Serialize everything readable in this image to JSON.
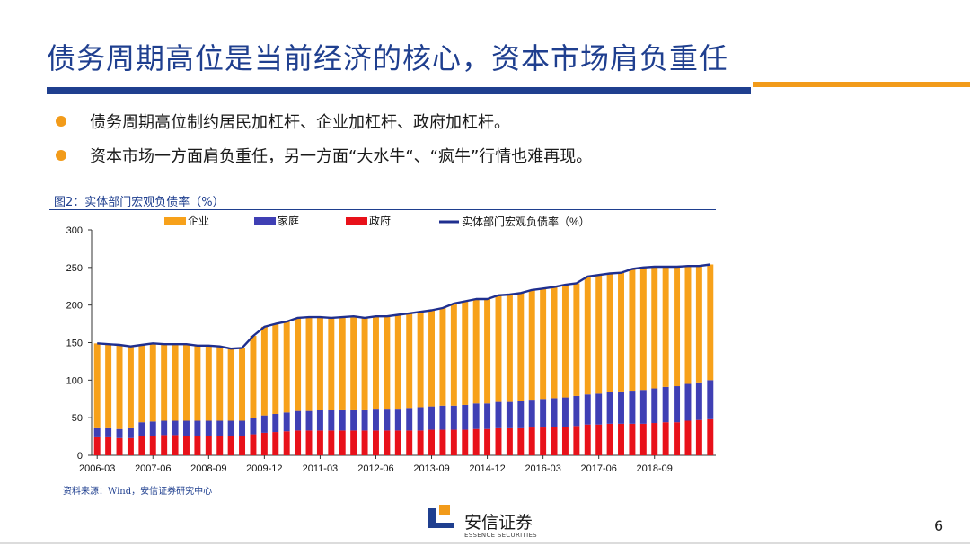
{
  "slide": {
    "title": "债务周期高位是当前经济的核心，资本市场肩负重任",
    "bullets": [
      "债务周期高位制约居民加杠杆、企业加杠杆、政府加杠杆。",
      "资本市场一方面肩负重任，另一方面“大水牛“、“疯牛”行情也难再现。"
    ],
    "page_number": "6"
  },
  "figure": {
    "title": "图2：实体部门宏观负债率（%）",
    "source": "资料来源：Wind，安信证券研究中心"
  },
  "brand": {
    "name_cn": "安信证券",
    "name_en": "ESSENCE SECURITIES",
    "colors": {
      "blue": "#1f3f8f",
      "orange": "#f29b1a"
    }
  },
  "chart_data": {
    "type": "bar",
    "stacked": true,
    "x_ticks": [
      "2006-03",
      "2007-06",
      "2008-09",
      "2009-12",
      "2011-03",
      "2012-06",
      "2013-09",
      "2014-12",
      "2016-03",
      "2017-06",
      "2018-09"
    ],
    "ylim": [
      0,
      300
    ],
    "yticks": [
      0,
      50,
      100,
      150,
      200,
      250,
      300
    ],
    "legend_position": "top",
    "colors": {
      "企业": "#f7a11a",
      "家庭": "#3f3fb4",
      "政府": "#e8111a",
      "实体部门宏观负债率（%）": "#1f2f8f"
    },
    "series": [
      {
        "name": "企业",
        "values": [
          113,
          112,
          112,
          109,
          103,
          104,
          102,
          102,
          102,
          100,
          100,
          99,
          96,
          97,
          109,
          118,
          120,
          121,
          124,
          125,
          124,
          123,
          123,
          124,
          122,
          123,
          123,
          125,
          126,
          127,
          128,
          130,
          136,
          138,
          139,
          139,
          142,
          143,
          144,
          146,
          147,
          148,
          150,
          150,
          157,
          158,
          158,
          158,
          162,
          163,
          162,
          160,
          159,
          157,
          155,
          154
        ]
      },
      {
        "name": "家庭",
        "values": [
          12,
          12,
          12,
          13,
          18,
          19,
          19,
          19,
          20,
          20,
          20,
          20,
          20,
          20,
          22,
          23,
          24,
          25,
          26,
          26,
          27,
          27,
          28,
          28,
          28,
          29,
          29,
          29,
          30,
          31,
          31,
          32,
          32,
          33,
          34,
          34,
          35,
          35,
          36,
          37,
          38,
          38,
          39,
          40,
          40,
          41,
          42,
          43,
          44,
          45,
          46,
          47,
          48,
          49,
          50,
          52
        ]
      },
      {
        "name": "政府",
        "values": [
          24,
          24,
          23,
          23,
          26,
          26,
          27,
          27,
          26,
          26,
          26,
          26,
          26,
          26,
          28,
          30,
          31,
          32,
          33,
          33,
          33,
          33,
          33,
          33,
          33,
          33,
          33,
          33,
          33,
          33,
          34,
          34,
          34,
          34,
          35,
          35,
          36,
          36,
          36,
          37,
          37,
          38,
          38,
          39,
          41,
          41,
          42,
          42,
          42,
          42,
          43,
          44,
          44,
          46,
          47,
          48
        ]
      }
    ],
    "line": {
      "name": "实体部门宏观负债率（%）",
      "values": [
        149,
        148,
        147,
        145,
        147,
        149,
        148,
        148,
        148,
        146,
        146,
        145,
        142,
        143,
        159,
        171,
        175,
        178,
        183,
        184,
        184,
        183,
        184,
        185,
        183,
        185,
        185,
        187,
        189,
        191,
        193,
        196,
        202,
        205,
        208,
        208,
        213,
        214,
        216,
        220,
        222,
        224,
        227,
        229,
        238,
        240,
        242,
        243,
        248,
        250,
        251,
        251,
        251,
        252,
        252,
        254
      ]
    }
  }
}
